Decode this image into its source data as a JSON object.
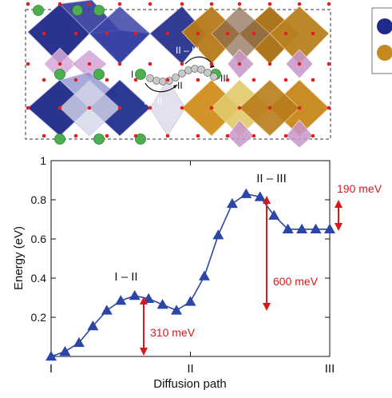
{
  "structure_panel": {
    "labels": {
      "site_1": "I",
      "site_2": "II",
      "site_3": "III",
      "hop_1_2": "I – II",
      "hop_2_3": "II – III"
    },
    "colors": {
      "blue_octahedra": "#1f2a8a",
      "orange_octahedra": "#c58a1e",
      "pink_octahedra": "#d8a9d8",
      "li_atoms": "#4caf50",
      "oxygen_atoms": "#e02020"
    }
  },
  "chart_data": {
    "type": "line",
    "xlabel": "Diffusion path",
    "ylabel": "Energy (eV)",
    "xlim": [
      0,
      20
    ],
    "ylim": [
      0,
      1
    ],
    "x_ticks": [
      {
        "x": 0,
        "label": "I"
      },
      {
        "x": 10,
        "label": "II"
      },
      {
        "x": 20,
        "label": "III"
      }
    ],
    "y_ticks": [
      {
        "y": 0.2,
        "label": "0.2"
      },
      {
        "y": 0.4,
        "label": "0.4"
      },
      {
        "y": 0.6,
        "label": "0.6"
      },
      {
        "y": 0.8,
        "label": "0.8"
      },
      {
        "y": 1.0,
        "label": "1"
      }
    ],
    "series": [
      {
        "color": "#2b45a8",
        "x": [
          0,
          1,
          2,
          3,
          4,
          5,
          6,
          7,
          8,
          9,
          10,
          11,
          12,
          13,
          14,
          15,
          16,
          17,
          18,
          19,
          20
        ],
        "y": [
          0.0,
          0.025,
          0.07,
          0.155,
          0.235,
          0.285,
          0.31,
          0.295,
          0.265,
          0.235,
          0.28,
          0.41,
          0.62,
          0.78,
          0.83,
          0.815,
          0.72,
          0.65,
          0.65,
          0.65,
          0.65
        ]
      }
    ],
    "annotations": {
      "hop_1_2": "I – II",
      "hop_2_3": "II – III",
      "barrier_1": "310 meV",
      "barrier_2": "600 meV",
      "barrier_3": "190 meV"
    }
  }
}
